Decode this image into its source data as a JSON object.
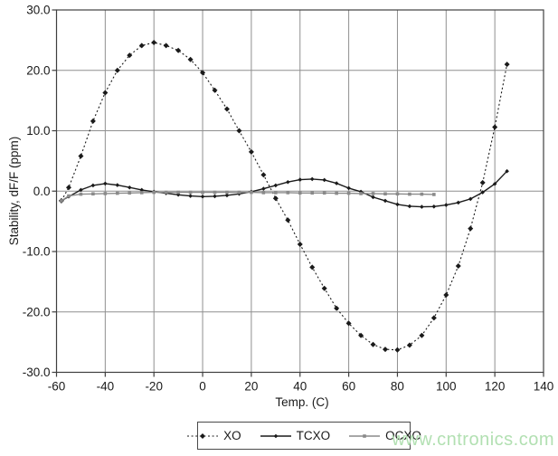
{
  "watermark": {
    "text": "www.cntronics.com",
    "color": "#b2e0b2"
  },
  "chart_data": {
    "type": "line",
    "title": "",
    "xlabel": "Temp. (C)",
    "ylabel": "Stability, dF/F (ppm)",
    "xlim": [
      -60,
      140
    ],
    "ylim": [
      -30,
      30
    ],
    "x_ticks": [
      -60,
      -40,
      -20,
      0,
      20,
      40,
      60,
      80,
      100,
      120,
      140
    ],
    "x_tick_labels": [
      "-60",
      "-40",
      "-20",
      "0",
      "20",
      "40",
      "60",
      "80",
      "100",
      "120",
      "140"
    ],
    "y_ticks": [
      30,
      20,
      10,
      0,
      -10,
      -20,
      -30
    ],
    "y_tick_labels": [
      "30.0",
      "20.0",
      "10.0",
      "0.0",
      "-10.0",
      "-20.0",
      "-30.0"
    ],
    "grid": true,
    "legend_position": "bottom-center-boxed",
    "colors": {
      "grid": "#8f8f8f",
      "border": "#3f3f3f",
      "text": "#1a1a1a"
    },
    "series": [
      {
        "name": "XO",
        "color": "#1a1a1a",
        "line": "dotted",
        "marker": "diamond",
        "marker_size": 3,
        "points": [
          [
            -58,
            -1.6
          ],
          [
            -55,
            0.6
          ],
          [
            -50,
            5.8
          ],
          [
            -45,
            11.6
          ],
          [
            -40,
            16.3
          ],
          [
            -35,
            20.0
          ],
          [
            -30,
            22.5
          ],
          [
            -25,
            24.1
          ],
          [
            -20,
            24.6
          ],
          [
            -15,
            24.1
          ],
          [
            -10,
            23.3
          ],
          [
            -5,
            21.8
          ],
          [
            0,
            19.6
          ],
          [
            5,
            16.7
          ],
          [
            10,
            13.6
          ],
          [
            15,
            10.0
          ],
          [
            20,
            6.5
          ],
          [
            25,
            2.7
          ],
          [
            30,
            -1.2
          ],
          [
            35,
            -4.8
          ],
          [
            40,
            -8.8
          ],
          [
            45,
            -12.6
          ],
          [
            50,
            -16.1
          ],
          [
            55,
            -19.4
          ],
          [
            60,
            -21.9
          ],
          [
            65,
            -23.9
          ],
          [
            70,
            -25.4
          ],
          [
            75,
            -26.2
          ],
          [
            80,
            -26.3
          ],
          [
            85,
            -25.5
          ],
          [
            90,
            -23.9
          ],
          [
            95,
            -21.0
          ],
          [
            100,
            -17.2
          ],
          [
            105,
            -12.4
          ],
          [
            110,
            -6.2
          ],
          [
            115,
            1.4
          ],
          [
            120,
            10.6
          ],
          [
            125,
            21.0
          ]
        ]
      },
      {
        "name": "TCXO",
        "color": "#1a1a1a",
        "line": "solid",
        "marker": "diamond",
        "marker_size": 2.3,
        "points": [
          [
            -58,
            -1.6
          ],
          [
            -55,
            -0.9
          ],
          [
            -50,
            0.2
          ],
          [
            -45,
            0.95
          ],
          [
            -40,
            1.25
          ],
          [
            -35,
            1.0
          ],
          [
            -30,
            0.6
          ],
          [
            -25,
            0.2
          ],
          [
            -20,
            -0.1
          ],
          [
            -15,
            -0.35
          ],
          [
            -10,
            -0.6
          ],
          [
            -5,
            -0.8
          ],
          [
            0,
            -0.9
          ],
          [
            5,
            -0.85
          ],
          [
            10,
            -0.7
          ],
          [
            15,
            -0.45
          ],
          [
            20,
            -0.1
          ],
          [
            25,
            0.4
          ],
          [
            30,
            0.95
          ],
          [
            35,
            1.5
          ],
          [
            40,
            1.9
          ],
          [
            45,
            2.0
          ],
          [
            50,
            1.85
          ],
          [
            55,
            1.3
          ],
          [
            60,
            0.5
          ],
          [
            65,
            -0.1
          ],
          [
            70,
            -1.0
          ],
          [
            75,
            -1.6
          ],
          [
            80,
            -2.2
          ],
          [
            85,
            -2.5
          ],
          [
            90,
            -2.6
          ],
          [
            95,
            -2.55
          ],
          [
            100,
            -2.3
          ],
          [
            105,
            -1.9
          ],
          [
            110,
            -1.3
          ],
          [
            115,
            -0.2
          ],
          [
            120,
            1.2
          ],
          [
            125,
            3.3
          ]
        ]
      },
      {
        "name": "OCXO",
        "color": "#8a8a8a",
        "line": "solid",
        "marker": "square",
        "marker_size": 1.8,
        "points": [
          [
            -58,
            -1.6
          ],
          [
            -55,
            -0.8
          ],
          [
            -50,
            -0.5
          ],
          [
            -45,
            -0.45
          ],
          [
            -40,
            -0.4
          ],
          [
            -35,
            -0.35
          ],
          [
            -30,
            -0.3
          ],
          [
            -25,
            -0.25
          ],
          [
            -20,
            -0.2
          ],
          [
            -15,
            -0.2
          ],
          [
            -10,
            -0.2
          ],
          [
            -5,
            -0.2
          ],
          [
            0,
            -0.2
          ],
          [
            5,
            -0.2
          ],
          [
            10,
            -0.2
          ],
          [
            15,
            -0.2
          ],
          [
            20,
            -0.2
          ],
          [
            25,
            -0.25
          ],
          [
            30,
            -0.25
          ],
          [
            35,
            -0.25
          ],
          [
            40,
            -0.3
          ],
          [
            45,
            -0.3
          ],
          [
            50,
            -0.3
          ],
          [
            55,
            -0.35
          ],
          [
            60,
            -0.35
          ],
          [
            65,
            -0.4
          ],
          [
            70,
            -0.4
          ],
          [
            75,
            -0.45
          ],
          [
            80,
            -0.45
          ],
          [
            85,
            -0.5
          ],
          [
            90,
            -0.5
          ],
          [
            95,
            -0.55
          ]
        ]
      }
    ]
  }
}
